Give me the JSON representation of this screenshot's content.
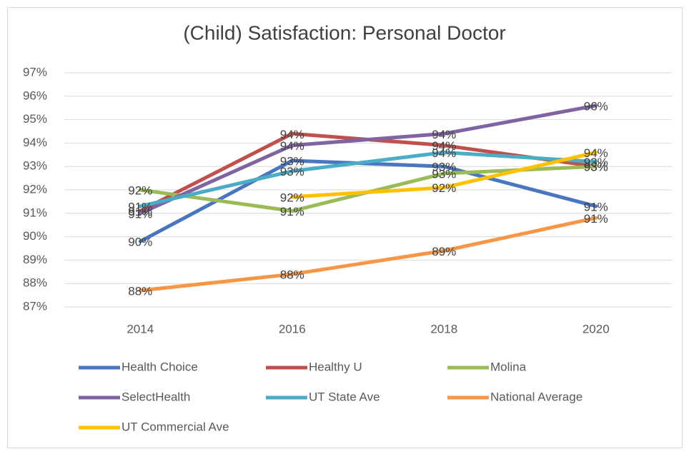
{
  "chart_data": {
    "type": "line",
    "title": "(Child) Satisfaction: Personal Doctor",
    "categories": [
      "2014",
      "2016",
      "2018",
      "2020"
    ],
    "ylim": [
      87,
      97
    ],
    "yticks": [
      {
        "value": 87,
        "label": "87%"
      },
      {
        "value": 88,
        "label": "88%"
      },
      {
        "value": 89,
        "label": "89%"
      },
      {
        "value": 90,
        "label": "90%"
      },
      {
        "value": 91,
        "label": "91%"
      },
      {
        "value": 92,
        "label": "92%"
      },
      {
        "value": 93,
        "label": "93%"
      },
      {
        "value": 94,
        "label": "94%"
      },
      {
        "value": 95,
        "label": "95%"
      },
      {
        "value": 96,
        "label": "96%"
      },
      {
        "value": 97,
        "label": "97%"
      }
    ],
    "grid": true,
    "series": [
      {
        "name": "Health Choice",
        "color": "#4a76c0",
        "values": [
          89.8,
          93.25,
          93.0,
          91.3
        ],
        "value_labels": [
          "90%",
          "93%",
          "93%",
          "91%"
        ]
      },
      {
        "name": "Healthy U",
        "color": "#c0504d",
        "values": [
          91.1,
          94.4,
          93.9,
          93.0
        ],
        "value_labels": [
          "91%",
          "94%",
          "94%",
          "93%"
        ]
      },
      {
        "name": "Molina",
        "color": "#9bbb59",
        "values": [
          92.0,
          91.1,
          92.7,
          93.0
        ],
        "value_labels": [
          "92%",
          "91%",
          "93%",
          "93%"
        ]
      },
      {
        "name": "SelectHealth",
        "color": "#8064a2",
        "values": [
          91.0,
          93.9,
          94.4,
          95.6
        ],
        "value_labels": [
          "91%",
          "94%",
          "94%",
          "96%"
        ]
      },
      {
        "name": "UT State Ave",
        "color": "#4bacc6",
        "values": [
          91.3,
          92.8,
          93.6,
          93.2
        ],
        "value_labels": [
          "91%",
          "93%",
          "94%",
          "93%"
        ]
      },
      {
        "name": "National Average",
        "color": "#f79646",
        "values": [
          87.7,
          88.4,
          89.4,
          90.8
        ],
        "value_labels": [
          "88%",
          "88%",
          "89%",
          "91%"
        ]
      },
      {
        "name": "UT Commercial Ave",
        "color": "#ffc000",
        "values": [
          null,
          91.7,
          92.1,
          93.6
        ],
        "value_labels": [
          null,
          "92%",
          "92%",
          "94%"
        ]
      }
    ]
  }
}
